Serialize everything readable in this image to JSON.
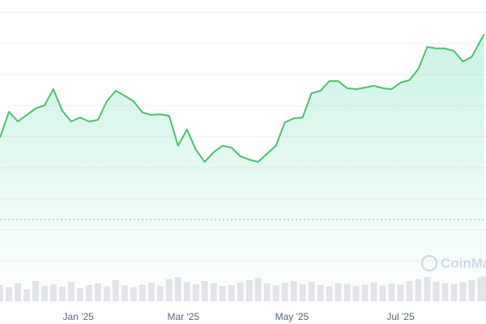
{
  "chart_data": {
    "type": "area",
    "x": [
      -44,
      -39,
      -34,
      -29,
      -24,
      -19,
      -14,
      -9,
      -4,
      1,
      6,
      11,
      16,
      21,
      26,
      31,
      36,
      41,
      46,
      51,
      56,
      61,
      66,
      71,
      76,
      81,
      86,
      91,
      96,
      101,
      106,
      111,
      116,
      121,
      126,
      131,
      136,
      141,
      146,
      151,
      156,
      161,
      166,
      171,
      176,
      181,
      186,
      191,
      196,
      201,
      206,
      211,
      216,
      221,
      226,
      228
    ],
    "series": [
      {
        "color": "#4fbf6f",
        "values": [
          3.97,
          4.8,
          4.49,
          4.7,
          4.91,
          5.01,
          5.53,
          4.83,
          4.49,
          4.62,
          4.49,
          4.54,
          5.14,
          5.48,
          5.32,
          5.14,
          4.78,
          4.7,
          4.72,
          4.67,
          3.71,
          4.23,
          3.58,
          3.19,
          3.5,
          3.71,
          3.65,
          3.37,
          3.26,
          3.19,
          3.45,
          3.71,
          4.46,
          4.59,
          4.62,
          5.4,
          5.48,
          5.79,
          5.79,
          5.56,
          5.53,
          5.58,
          5.64,
          5.56,
          5.53,
          5.74,
          5.82,
          6.18,
          6.89,
          6.84,
          6.84,
          6.76,
          6.42,
          6.57,
          7.1,
          7.3
        ]
      }
    ],
    "volume": {
      "color": "#e3e5ea",
      "ylim": [
        0,
        100
      ],
      "values": [
        40,
        35,
        45,
        30,
        50,
        38,
        42,
        36,
        48,
        33,
        40,
        44,
        37,
        52,
        39,
        35,
        41,
        46,
        38,
        55,
        60,
        48,
        42,
        50,
        45,
        38,
        40,
        47,
        52,
        58,
        44,
        39,
        46,
        50,
        42,
        48,
        40,
        37,
        45,
        43,
        38,
        41,
        47,
        39,
        44,
        42,
        50,
        55,
        60,
        48,
        45,
        43,
        47,
        52,
        58,
        62
      ]
    },
    "xlim": [
      -44,
      229
    ],
    "xticks": [
      {
        "value": 0,
        "label": "Jan '25"
      },
      {
        "value": 59,
        "label": "Mar '25"
      },
      {
        "value": 120,
        "label": "May '25"
      },
      {
        "value": 181,
        "label": "Jul '25"
      }
    ],
    "ylim": [
      -1.3,
      8.4
    ],
    "yticks": [
      0,
      1,
      2,
      3,
      4,
      5,
      6,
      7,
      8
    ],
    "grid": true,
    "baseline": 1.33,
    "watermark": "CoinMarketCap"
  }
}
